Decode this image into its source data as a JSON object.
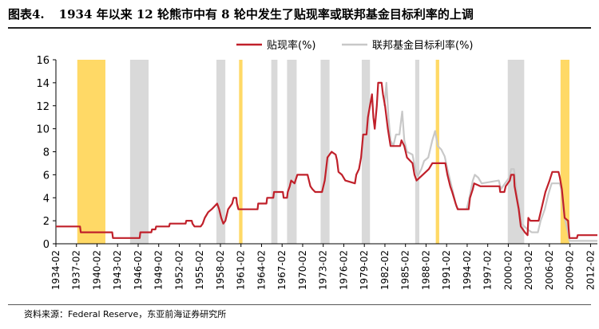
{
  "header": {
    "figure_no": "图表4.",
    "title": "1934 年以来 12 轮熊市中有 8 轮中发生了贴现率或联邦基金目标利率的上调"
  },
  "footer": {
    "source": "资料来源：Federal Reserve，东亚前海证券研究所"
  },
  "colors": {
    "discount": "#c0202a",
    "fed_funds": "#c8c8c8",
    "band_gray": "#d9d9d9",
    "band_yellow": "#ffd966"
  },
  "chart_data": {
    "type": "line",
    "title": "",
    "xlabel": "",
    "ylabel": "",
    "xlim": [
      1934.08,
      2013.08
    ],
    "ylim": [
      0,
      16
    ],
    "yticks": [
      0,
      2,
      4,
      6,
      8,
      10,
      12,
      14,
      16
    ],
    "xticks": [
      {
        "x": 1934.08,
        "label": "1934-02"
      },
      {
        "x": 1937.08,
        "label": "1937-02"
      },
      {
        "x": 1940.08,
        "label": "1940-02"
      },
      {
        "x": 1943.08,
        "label": "1943-02"
      },
      {
        "x": 1946.08,
        "label": "1946-02"
      },
      {
        "x": 1949.08,
        "label": "1949-02"
      },
      {
        "x": 1952.08,
        "label": "1952-02"
      },
      {
        "x": 1955.08,
        "label": "1955-02"
      },
      {
        "x": 1958.08,
        "label": "1958-02"
      },
      {
        "x": 1961.08,
        "label": "1961-02"
      },
      {
        "x": 1964.08,
        "label": "1964-02"
      },
      {
        "x": 1967.08,
        "label": "1967-02"
      },
      {
        "x": 1970.08,
        "label": "1970-02"
      },
      {
        "x": 1973.08,
        "label": "1973-02"
      },
      {
        "x": 1976.08,
        "label": "1976-02"
      },
      {
        "x": 1979.08,
        "label": "1979-02"
      },
      {
        "x": 1982.08,
        "label": "1982-02"
      },
      {
        "x": 1985.08,
        "label": "1985-02"
      },
      {
        "x": 1988.08,
        "label": "1988-02"
      },
      {
        "x": 1991.08,
        "label": "1991-02"
      },
      {
        "x": 1994.08,
        "label": "1994-02"
      },
      {
        "x": 1997.08,
        "label": "1997-02"
      },
      {
        "x": 2000.08,
        "label": "2000-02"
      },
      {
        "x": 2003.08,
        "label": "2003-02"
      },
      {
        "x": 2006.08,
        "label": "2006-02"
      },
      {
        "x": 2009.08,
        "label": "2009-02"
      },
      {
        "x": 2012.08,
        "label": "2012-02"
      }
    ],
    "legend": {
      "position": "top-right"
    },
    "bands": [
      {
        "start": 1937.2,
        "end": 1941.3,
        "kind": "yellow"
      },
      {
        "start": 1944.9,
        "end": 1947.6,
        "kind": "gray"
      },
      {
        "start": 1957.5,
        "end": 1958.8,
        "kind": "gray"
      },
      {
        "start": 1960.8,
        "end": 1961.3,
        "kind": "yellow"
      },
      {
        "start": 1965.5,
        "end": 1966.4,
        "kind": "gray"
      },
      {
        "start": 1967.8,
        "end": 1969.2,
        "kind": "gray"
      },
      {
        "start": 1972.7,
        "end": 1974.0,
        "kind": "gray"
      },
      {
        "start": 1978.7,
        "end": 1979.9,
        "kind": "gray"
      },
      {
        "start": 1986.5,
        "end": 1987.1,
        "kind": "gray"
      },
      {
        "start": 1989.5,
        "end": 1990.0,
        "kind": "yellow"
      },
      {
        "start": 2000.0,
        "end": 2002.4,
        "kind": "gray"
      },
      {
        "start": 2007.7,
        "end": 2009.0,
        "kind": "yellow"
      }
    ],
    "series": [
      {
        "name": "贴现率(%)",
        "color_key": "discount",
        "points": [
          [
            1934.08,
            1.5
          ],
          [
            1937.6,
            1.5
          ],
          [
            1937.7,
            1.0
          ],
          [
            1942.3,
            1.0
          ],
          [
            1942.4,
            0.5
          ],
          [
            1946.3,
            0.5
          ],
          [
            1946.4,
            1.0
          ],
          [
            1948.0,
            1.0
          ],
          [
            1948.1,
            1.25
          ],
          [
            1948.6,
            1.25
          ],
          [
            1948.7,
            1.5
          ],
          [
            1950.6,
            1.5
          ],
          [
            1950.7,
            1.75
          ],
          [
            1953.0,
            1.75
          ],
          [
            1953.1,
            2.0
          ],
          [
            1953.9,
            2.0
          ],
          [
            1954.0,
            1.75
          ],
          [
            1954.3,
            1.5
          ],
          [
            1955.2,
            1.5
          ],
          [
            1955.5,
            1.75
          ],
          [
            1955.8,
            2.25
          ],
          [
            1956.3,
            2.75
          ],
          [
            1956.8,
            3.0
          ],
          [
            1957.6,
            3.5
          ],
          [
            1957.9,
            3.0
          ],
          [
            1958.2,
            2.25
          ],
          [
            1958.5,
            1.75
          ],
          [
            1958.8,
            2.0
          ],
          [
            1959.2,
            3.0
          ],
          [
            1959.8,
            3.5
          ],
          [
            1960.0,
            4.0
          ],
          [
            1960.4,
            4.0
          ],
          [
            1960.5,
            3.5
          ],
          [
            1960.7,
            3.0
          ],
          [
            1963.5,
            3.0
          ],
          [
            1963.6,
            3.5
          ],
          [
            1964.8,
            3.5
          ],
          [
            1964.9,
            4.0
          ],
          [
            1965.8,
            4.0
          ],
          [
            1965.9,
            4.5
          ],
          [
            1967.2,
            4.5
          ],
          [
            1967.3,
            4.0
          ],
          [
            1967.8,
            4.0
          ],
          [
            1967.9,
            4.5
          ],
          [
            1968.2,
            5.0
          ],
          [
            1968.4,
            5.5
          ],
          [
            1968.9,
            5.25
          ],
          [
            1969.3,
            6.0
          ],
          [
            1970.8,
            6.0
          ],
          [
            1971.2,
            5.0
          ],
          [
            1971.5,
            4.75
          ],
          [
            1971.9,
            4.5
          ],
          [
            1972.9,
            4.5
          ],
          [
            1973.1,
            5.0
          ],
          [
            1973.3,
            5.5
          ],
          [
            1973.5,
            6.5
          ],
          [
            1973.7,
            7.5
          ],
          [
            1974.3,
            8.0
          ],
          [
            1974.9,
            7.75
          ],
          [
            1975.1,
            7.25
          ],
          [
            1975.3,
            6.25
          ],
          [
            1975.8,
            6.0
          ],
          [
            1976.3,
            5.5
          ],
          [
            1977.7,
            5.25
          ],
          [
            1977.9,
            6.0
          ],
          [
            1978.3,
            6.5
          ],
          [
            1978.6,
            7.5
          ],
          [
            1978.9,
            9.5
          ],
          [
            1979.4,
            9.5
          ],
          [
            1979.6,
            11.0
          ],
          [
            1979.9,
            12.0
          ],
          [
            1980.2,
            13.0
          ],
          [
            1980.4,
            11.0
          ],
          [
            1980.6,
            10.0
          ],
          [
            1980.9,
            12.0
          ],
          [
            1981.1,
            14.0
          ],
          [
            1981.6,
            14.0
          ],
          [
            1981.8,
            13.0
          ],
          [
            1982.1,
            12.0
          ],
          [
            1982.5,
            10.0
          ],
          [
            1982.9,
            8.5
          ],
          [
            1984.3,
            8.5
          ],
          [
            1984.5,
            9.0
          ],
          [
            1984.9,
            8.5
          ],
          [
            1985.3,
            7.5
          ],
          [
            1986.1,
            7.0
          ],
          [
            1986.4,
            6.0
          ],
          [
            1986.7,
            5.5
          ],
          [
            1987.6,
            6.0
          ],
          [
            1988.5,
            6.5
          ],
          [
            1989.0,
            7.0
          ],
          [
            1990.9,
            7.0
          ],
          [
            1991.2,
            6.0
          ],
          [
            1991.6,
            5.0
          ],
          [
            1991.9,
            4.5
          ],
          [
            1992.4,
            3.5
          ],
          [
            1992.7,
            3.0
          ],
          [
            1994.3,
            3.0
          ],
          [
            1994.5,
            4.0
          ],
          [
            1994.9,
            4.75
          ],
          [
            1995.1,
            5.25
          ],
          [
            1996.0,
            5.0
          ],
          [
            1998.8,
            5.0
          ],
          [
            1998.9,
            4.5
          ],
          [
            1999.5,
            4.5
          ],
          [
            1999.7,
            5.0
          ],
          [
            2000.3,
            5.5
          ],
          [
            2000.5,
            6.0
          ],
          [
            2000.9,
            6.0
          ],
          [
            2001.0,
            5.0
          ],
          [
            2001.3,
            4.0
          ],
          [
            2001.6,
            3.0
          ],
          [
            2001.9,
            1.5
          ],
          [
            2002.5,
            1.0
          ],
          [
            2002.9,
            0.75
          ],
          [
            2003.0,
            2.25
          ],
          [
            2003.3,
            2.0
          ],
          [
            2004.5,
            2.0
          ],
          [
            2004.9,
            3.0
          ],
          [
            2005.5,
            4.5
          ],
          [
            2006.1,
            5.5
          ],
          [
            2006.5,
            6.25
          ],
          [
            2007.4,
            6.25
          ],
          [
            2007.6,
            5.75
          ],
          [
            2007.9,
            4.75
          ],
          [
            2008.1,
            3.5
          ],
          [
            2008.3,
            2.25
          ],
          [
            2008.8,
            2.0
          ],
          [
            2008.9,
            1.25
          ],
          [
            2009.0,
            0.5
          ],
          [
            2010.1,
            0.5
          ],
          [
            2010.2,
            0.75
          ],
          [
            2013.08,
            0.75
          ]
        ]
      },
      {
        "name": "联邦基金目标利率(%)",
        "color_key": "fed_funds",
        "points": [
          [
            1982.0,
            12.0
          ],
          [
            1982.3,
            14.0
          ],
          [
            1982.6,
            11.0
          ],
          [
            1982.9,
            9.0
          ],
          [
            1983.3,
            8.5
          ],
          [
            1983.7,
            9.5
          ],
          [
            1984.2,
            9.5
          ],
          [
            1984.6,
            11.5
          ],
          [
            1984.9,
            9.0
          ],
          [
            1985.3,
            8.0
          ],
          [
            1986.1,
            7.75
          ],
          [
            1986.5,
            6.5
          ],
          [
            1986.9,
            5.9
          ],
          [
            1987.4,
            6.5
          ],
          [
            1987.8,
            7.2
          ],
          [
            1988.4,
            7.5
          ],
          [
            1989.0,
            9.0
          ],
          [
            1989.4,
            9.8
          ],
          [
            1989.8,
            8.5
          ],
          [
            1990.3,
            8.2
          ],
          [
            1990.8,
            7.6
          ],
          [
            1991.2,
            6.5
          ],
          [
            1991.6,
            5.5
          ],
          [
            1992.0,
            4.5
          ],
          [
            1992.5,
            3.25
          ],
          [
            1992.8,
            3.0
          ],
          [
            1994.0,
            3.0
          ],
          [
            1994.4,
            4.0
          ],
          [
            1994.9,
            5.5
          ],
          [
            1995.2,
            6.0
          ],
          [
            1995.7,
            5.75
          ],
          [
            1996.2,
            5.25
          ],
          [
            1998.7,
            5.5
          ],
          [
            1999.0,
            4.75
          ],
          [
            1999.6,
            5.25
          ],
          [
            2000.2,
            5.75
          ],
          [
            2000.5,
            6.5
          ],
          [
            2000.9,
            6.5
          ],
          [
            2001.1,
            5.5
          ],
          [
            2001.4,
            4.0
          ],
          [
            2001.7,
            3.0
          ],
          [
            2002.0,
            1.75
          ],
          [
            2002.9,
            1.25
          ],
          [
            2003.5,
            1.0
          ],
          [
            2004.4,
            1.0
          ],
          [
            2004.8,
            2.0
          ],
          [
            2005.4,
            3.0
          ],
          [
            2005.9,
            4.25
          ],
          [
            2006.4,
            5.25
          ],
          [
            2007.6,
            5.25
          ],
          [
            2007.9,
            4.5
          ],
          [
            2008.1,
            3.0
          ],
          [
            2008.4,
            2.0
          ],
          [
            2008.8,
            1.0
          ],
          [
            2009.0,
            0.25
          ],
          [
            2013.08,
            0.25
          ]
        ]
      }
    ]
  }
}
